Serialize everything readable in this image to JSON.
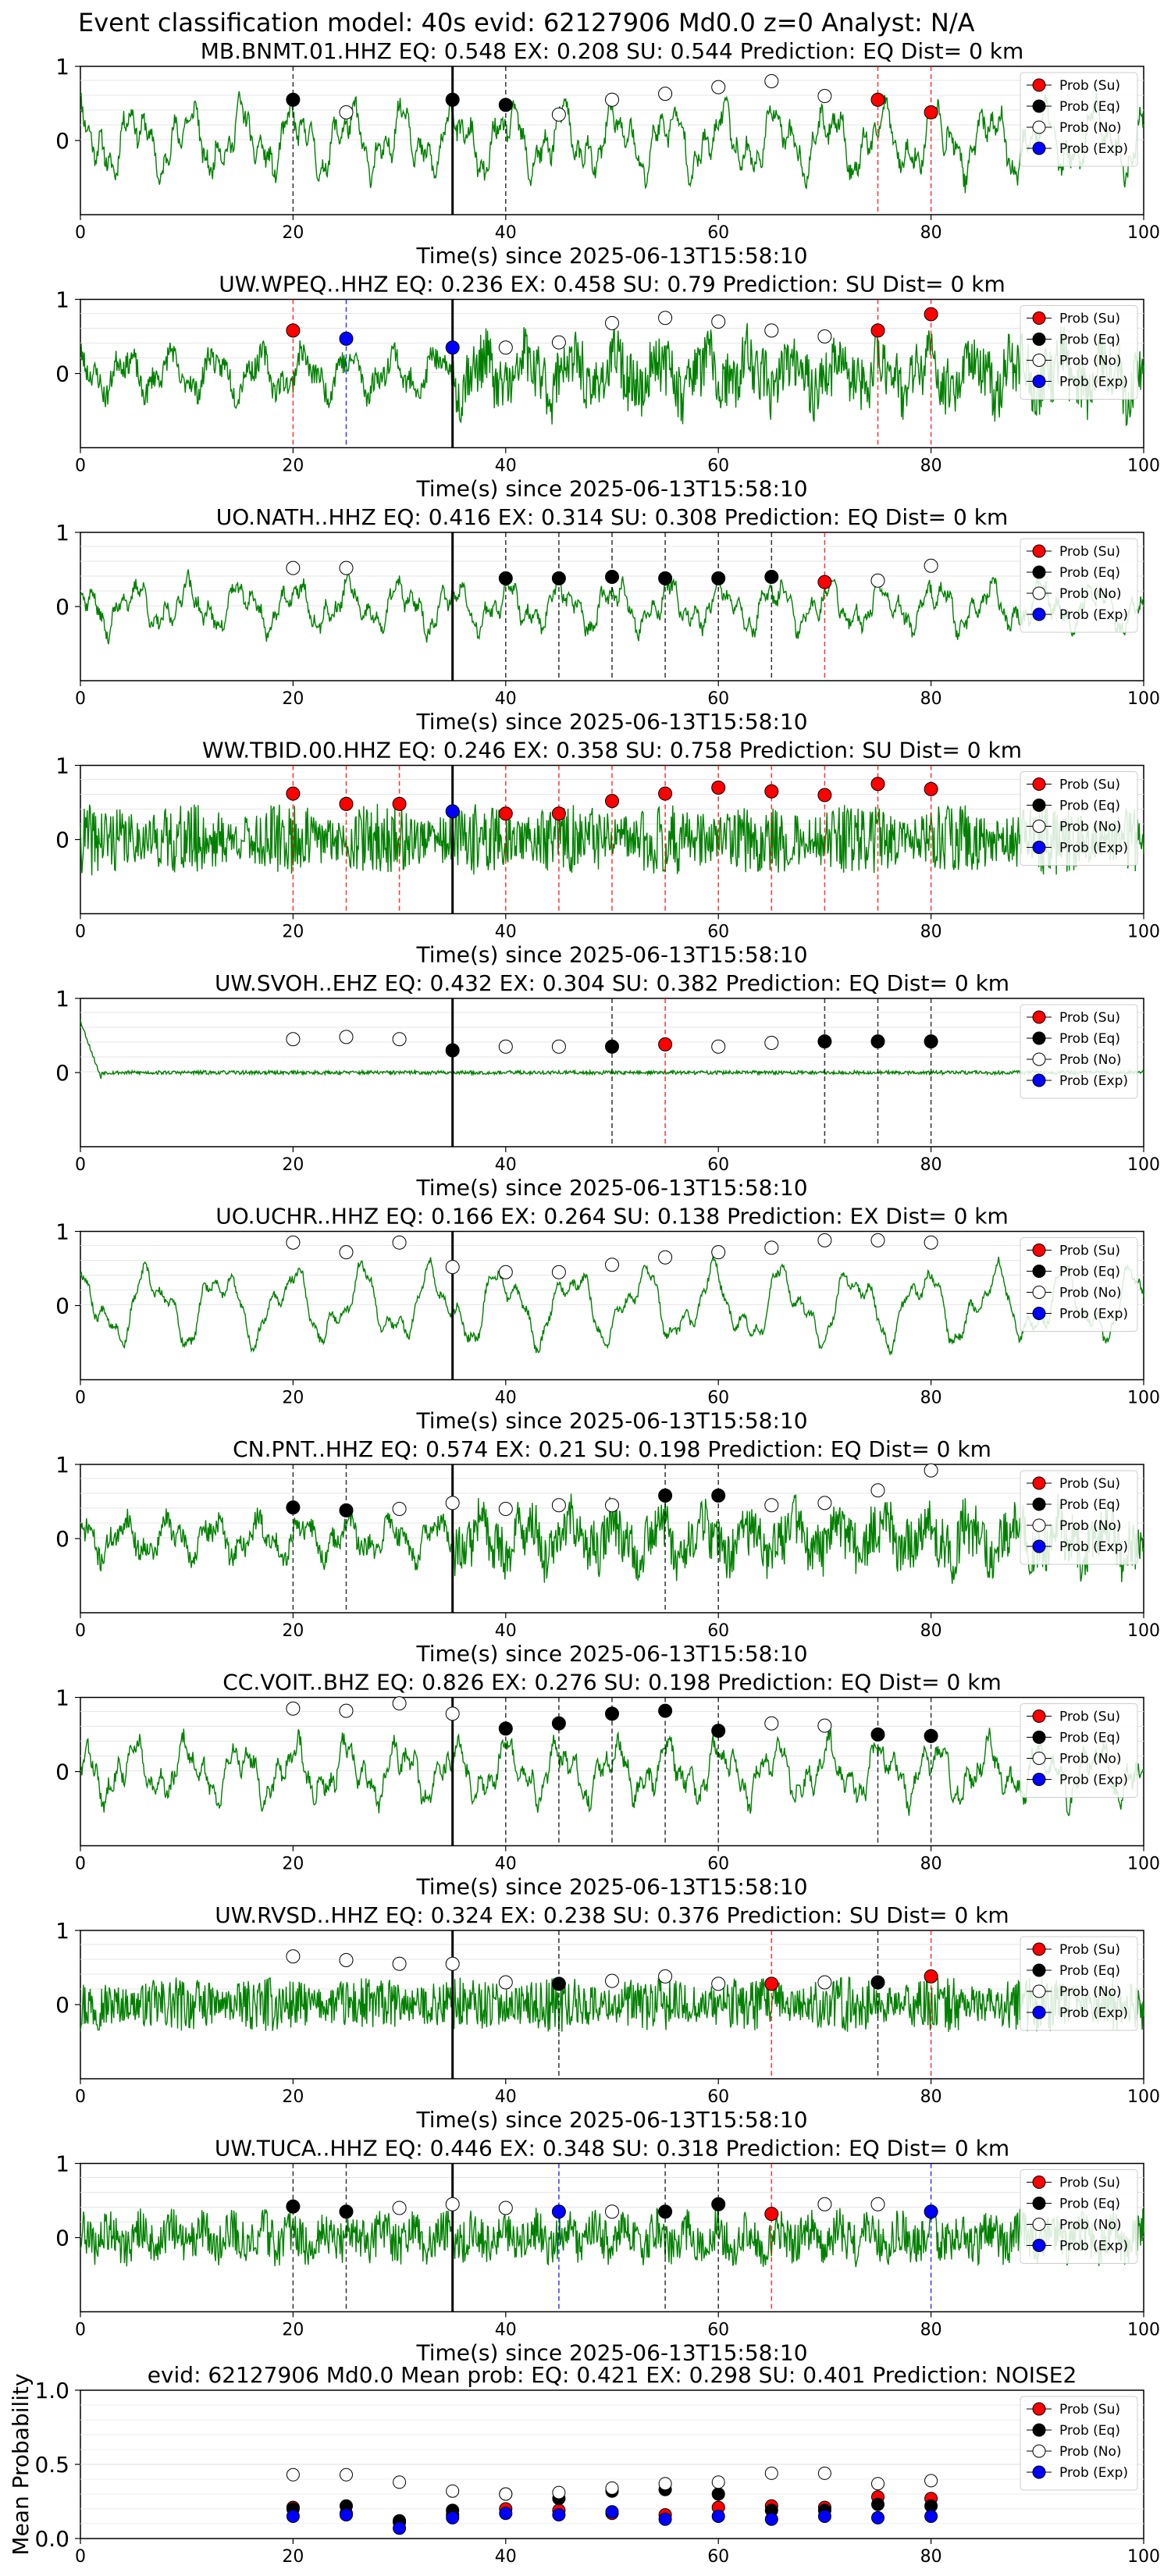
{
  "page_title": "Event classification model: 40s evid: 62127906 Md0.0 z=0 Analyst: N/A",
  "colors": {
    "su": "#ff0000",
    "eq": "#000000",
    "no": "#ffffff",
    "exp": "#0000ff",
    "trace": "#008000",
    "pick_line": "#000000"
  },
  "legend_labels": [
    "Prob (Su)",
    "Prob (Eq)",
    "Prob (No)",
    "Prob (Exp)"
  ],
  "x_axis_label": "Time(s) since 2025-06-13T15:58:10",
  "chart_data": [
    {
      "type": "scatter",
      "title": "MB.BNMT.01.HHZ   EQ: 0.548  EX: 0.208  SU: 0.544   Prediction: EQ    Dist= 0 km",
      "xlim": [
        0,
        100
      ],
      "ylim": [
        -1,
        1
      ],
      "yticks": [
        "1",
        "0"
      ],
      "xticks": [
        "0",
        "20",
        "40",
        "60",
        "80",
        "100"
      ],
      "pick_time": 35,
      "trace_style": "lowfreq",
      "trace_amp": 0.7,
      "seed": 11,
      "markers": [
        {
          "x": 20,
          "y": 0.55,
          "c": "eq",
          "line": "eq"
        },
        {
          "x": 25,
          "y": 0.38,
          "c": "no"
        },
        {
          "x": 35,
          "y": 0.55,
          "c": "eq"
        },
        {
          "x": 40,
          "y": 0.48,
          "c": "eq",
          "line": "eq"
        },
        {
          "x": 45,
          "y": 0.35,
          "c": "no"
        },
        {
          "x": 50,
          "y": 0.55,
          "c": "no"
        },
        {
          "x": 55,
          "y": 0.63,
          "c": "no"
        },
        {
          "x": 60,
          "y": 0.72,
          "c": "no"
        },
        {
          "x": 65,
          "y": 0.8,
          "c": "no"
        },
        {
          "x": 70,
          "y": 0.6,
          "c": "no"
        },
        {
          "x": 75,
          "y": 0.55,
          "c": "su",
          "line": "su"
        },
        {
          "x": 80,
          "y": 0.38,
          "c": "su",
          "line": "su"
        }
      ]
    },
    {
      "type": "scatter",
      "title": "UW.WPEQ..HHZ   EQ: 0.236  EX: 0.458  SU: 0.79   Prediction: SU    Dist= 0 km",
      "xlim": [
        0,
        100
      ],
      "ylim": [
        -1,
        1
      ],
      "yticks": [
        "1",
        "0"
      ],
      "xticks": [
        "0",
        "20",
        "40",
        "60",
        "80",
        "100"
      ],
      "pick_time": 35,
      "trace_style": "mixed",
      "trace_amp": 0.6,
      "seed": 23,
      "markers": [
        {
          "x": 20,
          "y": 0.58,
          "c": "su",
          "line": "su"
        },
        {
          "x": 25,
          "y": 0.47,
          "c": "exp",
          "line": "exp"
        },
        {
          "x": 35,
          "y": 0.35,
          "c": "exp"
        },
        {
          "x": 40,
          "y": 0.35,
          "c": "no"
        },
        {
          "x": 45,
          "y": 0.42,
          "c": "no"
        },
        {
          "x": 50,
          "y": 0.68,
          "c": "no"
        },
        {
          "x": 55,
          "y": 0.75,
          "c": "no"
        },
        {
          "x": 60,
          "y": 0.7,
          "c": "no"
        },
        {
          "x": 65,
          "y": 0.58,
          "c": "no"
        },
        {
          "x": 70,
          "y": 0.5,
          "c": "no"
        },
        {
          "x": 75,
          "y": 0.58,
          "c": "su",
          "line": "su"
        },
        {
          "x": 80,
          "y": 0.8,
          "c": "su",
          "line": "su"
        }
      ]
    },
    {
      "type": "scatter",
      "title": "UO.NATH..HHZ   EQ: 0.416  EX: 0.314  SU: 0.308   Prediction: EQ    Dist= 0 km",
      "xlim": [
        0,
        100
      ],
      "ylim": [
        -1,
        1
      ],
      "yticks": [
        "1",
        "0"
      ],
      "xticks": [
        "0",
        "20",
        "40",
        "60",
        "80",
        "100"
      ],
      "pick_time": 35,
      "trace_style": "lowfreq",
      "trace_amp": 0.5,
      "seed": 37,
      "markers": [
        {
          "x": 20,
          "y": 0.52,
          "c": "no"
        },
        {
          "x": 25,
          "y": 0.52,
          "c": "no"
        },
        {
          "x": 40,
          "y": 0.38,
          "c": "eq",
          "line": "eq"
        },
        {
          "x": 45,
          "y": 0.38,
          "c": "eq",
          "line": "eq"
        },
        {
          "x": 50,
          "y": 0.4,
          "c": "eq",
          "line": "eq"
        },
        {
          "x": 55,
          "y": 0.38,
          "c": "eq",
          "line": "eq"
        },
        {
          "x": 60,
          "y": 0.38,
          "c": "eq",
          "line": "eq"
        },
        {
          "x": 65,
          "y": 0.4,
          "c": "eq",
          "line": "eq"
        },
        {
          "x": 70,
          "y": 0.33,
          "c": "su",
          "line": "su"
        },
        {
          "x": 75,
          "y": 0.35,
          "c": "no"
        },
        {
          "x": 80,
          "y": 0.55,
          "c": "no"
        }
      ]
    },
    {
      "type": "scatter",
      "title": "WW.TBID.00.HHZ   EQ: 0.246  EX: 0.358  SU: 0.758   Prediction: SU    Dist= 0 km",
      "xlim": [
        0,
        100
      ],
      "ylim": [
        -1,
        1
      ],
      "yticks": [
        "1",
        "0"
      ],
      "xticks": [
        "0",
        "20",
        "40",
        "60",
        "80",
        "100"
      ],
      "pick_time": 35,
      "trace_style": "highfreq",
      "trace_amp": 0.45,
      "seed": 41,
      "markers": [
        {
          "x": 20,
          "y": 0.62,
          "c": "su",
          "line": "su"
        },
        {
          "x": 25,
          "y": 0.48,
          "c": "su",
          "line": "su"
        },
        {
          "x": 30,
          "y": 0.48,
          "c": "su",
          "line": "su"
        },
        {
          "x": 35,
          "y": 0.38,
          "c": "exp"
        },
        {
          "x": 40,
          "y": 0.35,
          "c": "su",
          "line": "su"
        },
        {
          "x": 45,
          "y": 0.35,
          "c": "su",
          "line": "su"
        },
        {
          "x": 50,
          "y": 0.52,
          "c": "su",
          "line": "su"
        },
        {
          "x": 55,
          "y": 0.62,
          "c": "su",
          "line": "su"
        },
        {
          "x": 60,
          "y": 0.7,
          "c": "su",
          "line": "su"
        },
        {
          "x": 65,
          "y": 0.65,
          "c": "su",
          "line": "su"
        },
        {
          "x": 70,
          "y": 0.6,
          "c": "su",
          "line": "su"
        },
        {
          "x": 75,
          "y": 0.75,
          "c": "su",
          "line": "su"
        },
        {
          "x": 80,
          "y": 0.68,
          "c": "su",
          "line": "su"
        }
      ]
    },
    {
      "type": "scatter",
      "title": "UW.SVOH..EHZ   EQ: 0.432  EX: 0.304  SU: 0.382   Prediction: EQ    Dist= 0 km",
      "xlim": [
        0,
        100
      ],
      "ylim": [
        -1,
        1
      ],
      "yticks": [
        "1",
        "0"
      ],
      "xticks": [
        "0",
        "20",
        "40",
        "60",
        "80",
        "100"
      ],
      "pick_time": 35,
      "trace_style": "quiet",
      "trace_amp": 0.05,
      "seed": 53,
      "markers": [
        {
          "x": 20,
          "y": 0.45,
          "c": "no"
        },
        {
          "x": 25,
          "y": 0.48,
          "c": "no"
        },
        {
          "x": 30,
          "y": 0.45,
          "c": "no"
        },
        {
          "x": 35,
          "y": 0.3,
          "c": "eq"
        },
        {
          "x": 40,
          "y": 0.35,
          "c": "no"
        },
        {
          "x": 45,
          "y": 0.35,
          "c": "no"
        },
        {
          "x": 50,
          "y": 0.35,
          "c": "eq",
          "line": "eq"
        },
        {
          "x": 55,
          "y": 0.38,
          "c": "su",
          "line": "su"
        },
        {
          "x": 60,
          "y": 0.35,
          "c": "no"
        },
        {
          "x": 65,
          "y": 0.4,
          "c": "no"
        },
        {
          "x": 70,
          "y": 0.42,
          "c": "eq",
          "line": "eq"
        },
        {
          "x": 75,
          "y": 0.42,
          "c": "eq",
          "line": "eq"
        },
        {
          "x": 80,
          "y": 0.42,
          "c": "eq",
          "line": "eq"
        }
      ]
    },
    {
      "type": "scatter",
      "title": "UO.UCHR..HHZ   EQ: 0.166  EX: 0.264  SU: 0.138   Prediction: EX    Dist= 0 km",
      "xlim": [
        0,
        100
      ],
      "ylim": [
        -1,
        1
      ],
      "yticks": [
        "1",
        "0"
      ],
      "xticks": [
        "0",
        "20",
        "40",
        "60",
        "80",
        "100"
      ],
      "pick_time": 35,
      "trace_style": "verylowfreq",
      "trace_amp": 0.7,
      "seed": 67,
      "markers": [
        {
          "x": 20,
          "y": 0.85,
          "c": "no"
        },
        {
          "x": 25,
          "y": 0.72,
          "c": "no"
        },
        {
          "x": 30,
          "y": 0.85,
          "c": "no"
        },
        {
          "x": 35,
          "y": 0.52,
          "c": "no"
        },
        {
          "x": 40,
          "y": 0.45,
          "c": "no"
        },
        {
          "x": 45,
          "y": 0.45,
          "c": "no"
        },
        {
          "x": 50,
          "y": 0.55,
          "c": "no"
        },
        {
          "x": 55,
          "y": 0.65,
          "c": "no"
        },
        {
          "x": 60,
          "y": 0.72,
          "c": "no"
        },
        {
          "x": 65,
          "y": 0.78,
          "c": "no"
        },
        {
          "x": 70,
          "y": 0.88,
          "c": "no"
        },
        {
          "x": 75,
          "y": 0.88,
          "c": "no"
        },
        {
          "x": 80,
          "y": 0.85,
          "c": "no"
        }
      ]
    },
    {
      "type": "scatter",
      "title": "CN.PNT..HHZ   EQ: 0.574  EX: 0.21  SU: 0.198   Prediction: EQ    Dist= 0 km",
      "xlim": [
        0,
        100
      ],
      "ylim": [
        -1,
        1
      ],
      "yticks": [
        "1",
        "0"
      ],
      "xticks": [
        "0",
        "20",
        "40",
        "60",
        "80",
        "100"
      ],
      "pick_time": 35,
      "trace_style": "mixed",
      "trace_amp": 0.55,
      "seed": 71,
      "markers": [
        {
          "x": 20,
          "y": 0.42,
          "c": "eq",
          "line": "eq"
        },
        {
          "x": 25,
          "y": 0.38,
          "c": "eq",
          "line": "eq"
        },
        {
          "x": 30,
          "y": 0.4,
          "c": "no"
        },
        {
          "x": 35,
          "y": 0.48,
          "c": "no"
        },
        {
          "x": 40,
          "y": 0.4,
          "c": "no"
        },
        {
          "x": 45,
          "y": 0.45,
          "c": "no"
        },
        {
          "x": 50,
          "y": 0.45,
          "c": "no"
        },
        {
          "x": 55,
          "y": 0.58,
          "c": "eq",
          "line": "eq"
        },
        {
          "x": 60,
          "y": 0.58,
          "c": "eq",
          "line": "eq"
        },
        {
          "x": 65,
          "y": 0.45,
          "c": "no"
        },
        {
          "x": 70,
          "y": 0.48,
          "c": "no"
        },
        {
          "x": 75,
          "y": 0.65,
          "c": "no"
        },
        {
          "x": 80,
          "y": 0.92,
          "c": "no"
        }
      ]
    },
    {
      "type": "scatter",
      "title": "CC.VOIT..BHZ   EQ: 0.826  EX: 0.276  SU: 0.198   Prediction: EQ    Dist= 0 km",
      "xlim": [
        0,
        100
      ],
      "ylim": [
        -1,
        1
      ],
      "yticks": [
        "1",
        "0"
      ],
      "xticks": [
        "0",
        "20",
        "40",
        "60",
        "80",
        "100"
      ],
      "pick_time": 35,
      "trace_style": "lowfreq",
      "trace_amp": 0.6,
      "seed": 83,
      "markers": [
        {
          "x": 20,
          "y": 0.85,
          "c": "no"
        },
        {
          "x": 25,
          "y": 0.82,
          "c": "no"
        },
        {
          "x": 30,
          "y": 0.92,
          "c": "no"
        },
        {
          "x": 35,
          "y": 0.78,
          "c": "no"
        },
        {
          "x": 40,
          "y": 0.58,
          "c": "eq",
          "line": "eq"
        },
        {
          "x": 45,
          "y": 0.65,
          "c": "eq",
          "line": "eq"
        },
        {
          "x": 50,
          "y": 0.78,
          "c": "eq",
          "line": "eq"
        },
        {
          "x": 55,
          "y": 0.82,
          "c": "eq",
          "line": "eq"
        },
        {
          "x": 60,
          "y": 0.55,
          "c": "eq",
          "line": "eq"
        },
        {
          "x": 65,
          "y": 0.65,
          "c": "no"
        },
        {
          "x": 70,
          "y": 0.62,
          "c": "no"
        },
        {
          "x": 75,
          "y": 0.5,
          "c": "eq",
          "line": "eq"
        },
        {
          "x": 80,
          "y": 0.48,
          "c": "eq",
          "line": "eq"
        }
      ]
    },
    {
      "type": "scatter",
      "title": "UW.RVSD..HHZ   EQ: 0.324  EX: 0.238  SU: 0.376   Prediction: SU    Dist= 0 km",
      "xlim": [
        0,
        100
      ],
      "ylim": [
        -1,
        1
      ],
      "yticks": [
        "1",
        "0"
      ],
      "xticks": [
        "0",
        "20",
        "40",
        "60",
        "80",
        "100"
      ],
      "pick_time": 35,
      "trace_style": "highfreq",
      "trace_amp": 0.35,
      "seed": 97,
      "markers": [
        {
          "x": 20,
          "y": 0.65,
          "c": "no"
        },
        {
          "x": 25,
          "y": 0.6,
          "c": "no"
        },
        {
          "x": 30,
          "y": 0.55,
          "c": "no"
        },
        {
          "x": 35,
          "y": 0.55,
          "c": "no"
        },
        {
          "x": 40,
          "y": 0.3,
          "c": "no"
        },
        {
          "x": 45,
          "y": 0.28,
          "c": "eq",
          "line": "eq"
        },
        {
          "x": 50,
          "y": 0.32,
          "c": "no"
        },
        {
          "x": 55,
          "y": 0.38,
          "c": "no"
        },
        {
          "x": 60,
          "y": 0.28,
          "c": "no"
        },
        {
          "x": 65,
          "y": 0.28,
          "c": "su",
          "line": "su"
        },
        {
          "x": 70,
          "y": 0.3,
          "c": "no"
        },
        {
          "x": 75,
          "y": 0.3,
          "c": "eq",
          "line": "eq"
        },
        {
          "x": 80,
          "y": 0.38,
          "c": "su",
          "line": "su"
        }
      ]
    },
    {
      "type": "scatter",
      "title": "UW.TUCA..HHZ   EQ: 0.446  EX: 0.348  SU: 0.318   Prediction: EQ    Dist= 0 km",
      "xlim": [
        0,
        100
      ],
      "ylim": [
        -1,
        1
      ],
      "yticks": [
        "1",
        "0"
      ],
      "xticks": [
        "0",
        "20",
        "40",
        "60",
        "80",
        "100"
      ],
      "pick_time": 35,
      "trace_style": "noisy",
      "trace_amp": 0.45,
      "seed": 109,
      "markers": [
        {
          "x": 20,
          "y": 0.42,
          "c": "eq",
          "line": "eq"
        },
        {
          "x": 25,
          "y": 0.35,
          "c": "eq",
          "line": "eq"
        },
        {
          "x": 30,
          "y": 0.4,
          "c": "no"
        },
        {
          "x": 35,
          "y": 0.45,
          "c": "no"
        },
        {
          "x": 40,
          "y": 0.4,
          "c": "no"
        },
        {
          "x": 45,
          "y": 0.35,
          "c": "exp",
          "line": "exp"
        },
        {
          "x": 50,
          "y": 0.35,
          "c": "no"
        },
        {
          "x": 55,
          "y": 0.35,
          "c": "eq",
          "line": "eq"
        },
        {
          "x": 60,
          "y": 0.45,
          "c": "eq",
          "line": "eq"
        },
        {
          "x": 65,
          "y": 0.32,
          "c": "su",
          "line": "su"
        },
        {
          "x": 70,
          "y": 0.45,
          "c": "no"
        },
        {
          "x": 75,
          "y": 0.45,
          "c": "no"
        },
        {
          "x": 80,
          "y": 0.35,
          "c": "exp",
          "line": "exp"
        }
      ]
    },
    {
      "type": "scatter",
      "title": "evid: 62127906  Md0.0   Mean prob:   EQ: 0.421  EX: 0.298  SU: 0.401   Prediction: NOISE2",
      "ylabel": "Mean Probability",
      "xlim": [
        0,
        100
      ],
      "ylim": [
        0,
        1
      ],
      "yticks": [
        "0.0",
        "0.5",
        "1.0"
      ],
      "xticks": [
        "0",
        "20",
        "40",
        "60",
        "80",
        "100"
      ],
      "series": [
        {
          "name": "Prob (Su)",
          "c": "su",
          "x": [
            20,
            25,
            30,
            35,
            40,
            45,
            50,
            55,
            60,
            65,
            70,
            75,
            80
          ],
          "y": [
            0.21,
            0.17,
            0.11,
            0.16,
            0.2,
            0.19,
            0.17,
            0.16,
            0.21,
            0.22,
            0.21,
            0.28,
            0.27
          ]
        },
        {
          "name": "Prob (Eq)",
          "c": "eq",
          "x": [
            20,
            25,
            30,
            35,
            40,
            45,
            50,
            55,
            60,
            65,
            70,
            75,
            80
          ],
          "y": [
            0.2,
            0.22,
            0.12,
            0.19,
            0.3,
            0.27,
            0.32,
            0.33,
            0.3,
            0.19,
            0.19,
            0.23,
            0.22
          ]
        },
        {
          "name": "Prob (No)",
          "c": "no",
          "x": [
            20,
            25,
            30,
            35,
            40,
            45,
            50,
            55,
            60,
            65,
            70,
            75,
            80
          ],
          "y": [
            0.43,
            0.43,
            0.38,
            0.32,
            0.3,
            0.31,
            0.34,
            0.37,
            0.38,
            0.44,
            0.44,
            0.37,
            0.39
          ]
        },
        {
          "name": "Prob (Exp)",
          "c": "exp",
          "x": [
            20,
            25,
            30,
            35,
            40,
            45,
            50,
            55,
            60,
            65,
            70,
            75,
            80
          ],
          "y": [
            0.15,
            0.16,
            0.07,
            0.14,
            0.17,
            0.16,
            0.18,
            0.13,
            0.15,
            0.13,
            0.15,
            0.14,
            0.15
          ]
        }
      ]
    }
  ]
}
